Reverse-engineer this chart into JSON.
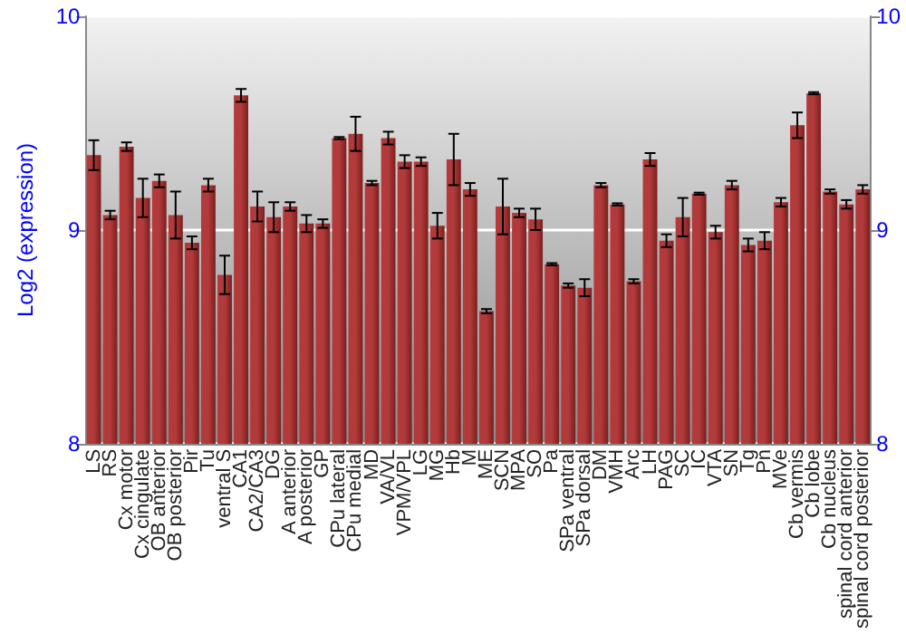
{
  "chart_data": {
    "type": "bar",
    "ylabel": "Log2 (expression)",
    "categories": [
      "LS",
      "RS",
      "Cx motor",
      "Cx cingulate",
      "OB anterior",
      "OB posterior",
      "Pir",
      "Tu",
      "ventral S",
      "CA1",
      "CA2/CA3",
      "DG",
      "A anterior",
      "A posterior",
      "GP",
      "CPu lateral",
      "CPu medial",
      "MD",
      "VA/VL",
      "VPM/VPL",
      "LG",
      "MG",
      "Hb",
      "M",
      "ME",
      "SCN",
      "MPA",
      "SO",
      "Pa",
      "SPa ventral",
      "SPa dorsal",
      "DM",
      "VMH",
      "Arc",
      "LH",
      "PAG",
      "SC",
      "IC",
      "VTA",
      "SN",
      "Tg",
      "Pn",
      "MVe",
      "Cb vermis",
      "Cb lobe",
      "Cb nucleus",
      "spinal cord anterior",
      "spinal cord posterior"
    ],
    "values": [
      9.35,
      9.07,
      9.39,
      9.15,
      9.23,
      9.07,
      8.94,
      9.21,
      8.79,
      9.63,
      9.11,
      9.06,
      9.11,
      9.03,
      9.03,
      9.43,
      9.45,
      9.22,
      9.43,
      9.32,
      9.32,
      9.02,
      9.33,
      9.19,
      8.62,
      9.11,
      9.08,
      9.05,
      8.84,
      8.74,
      8.73,
      9.21,
      9.12,
      8.76,
      9.33,
      8.95,
      9.06,
      9.17,
      8.99,
      9.21,
      8.93,
      8.95,
      9.13,
      9.49,
      9.64,
      9.18,
      9.12,
      9.19
    ],
    "errors": [
      0.07,
      0.02,
      0.02,
      0.09,
      0.03,
      0.11,
      0.03,
      0.03,
      0.09,
      0.03,
      0.07,
      0.07,
      0.02,
      0.04,
      0.02,
      0.005,
      0.08,
      0.01,
      0.03,
      0.03,
      0.02,
      0.06,
      0.12,
      0.03,
      0.01,
      0.13,
      0.02,
      0.05,
      0.005,
      0.01,
      0.04,
      0.01,
      0.005,
      0.01,
      0.03,
      0.03,
      0.09,
      0.005,
      0.03,
      0.02,
      0.03,
      0.04,
      0.02,
      0.06,
      0.005,
      0.01,
      0.02,
      0.02
    ],
    "color": "#b23a3a",
    "ylim": [
      8,
      10
    ],
    "yticks": [
      8,
      9,
      10
    ],
    "y2lim": [
      8,
      10
    ],
    "y2ticks": [
      8,
      9,
      10
    ],
    "grid": "y"
  }
}
